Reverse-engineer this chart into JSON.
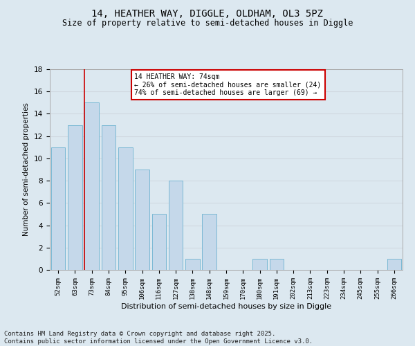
{
  "title1": "14, HEATHER WAY, DIGGLE, OLDHAM, OL3 5PZ",
  "title2": "Size of property relative to semi-detached houses in Diggle",
  "xlabel": "Distribution of semi-detached houses by size in Diggle",
  "ylabel": "Number of semi-detached properties",
  "categories": [
    "52sqm",
    "63sqm",
    "73sqm",
    "84sqm",
    "95sqm",
    "106sqm",
    "116sqm",
    "127sqm",
    "138sqm",
    "148sqm",
    "159sqm",
    "170sqm",
    "180sqm",
    "191sqm",
    "202sqm",
    "213sqm",
    "223sqm",
    "234sqm",
    "245sqm",
    "255sqm",
    "266sqm"
  ],
  "values": [
    11,
    13,
    15,
    13,
    11,
    9,
    5,
    8,
    1,
    5,
    0,
    0,
    1,
    1,
    0,
    0,
    0,
    0,
    0,
    0,
    1
  ],
  "bar_color": "#c5d8ea",
  "bar_edge_color": "#7ab8d4",
  "grid_color": "#d0d8e0",
  "bg_color": "#dce8f0",
  "annotation_box_text": "14 HEATHER WAY: 74sqm\n← 26% of semi-detached houses are smaller (24)\n74% of semi-detached houses are larger (69) →",
  "annotation_box_color": "#ffffff",
  "annotation_box_edge_color": "#cc0000",
  "vline_x_index": 2,
  "vline_color": "#cc0000",
  "ylim": [
    0,
    18
  ],
  "yticks": [
    0,
    2,
    4,
    6,
    8,
    10,
    12,
    14,
    16,
    18
  ],
  "footer_text": "Contains HM Land Registry data © Crown copyright and database right 2025.\nContains public sector information licensed under the Open Government Licence v3.0.",
  "title_fontsize": 10,
  "subtitle_fontsize": 8.5,
  "footer_fontsize": 6.5
}
